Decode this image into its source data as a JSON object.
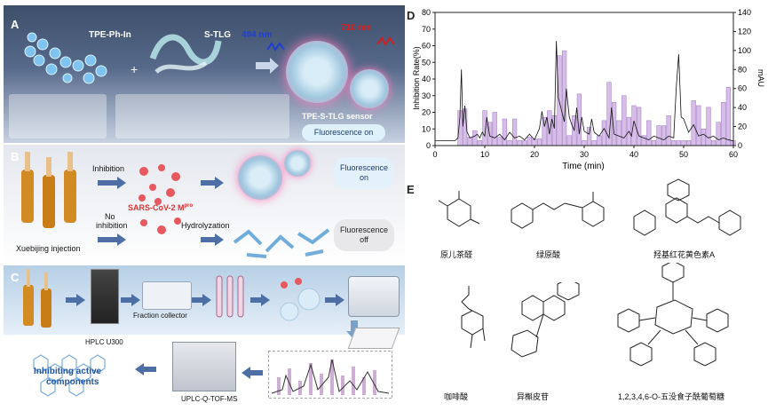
{
  "panelA": {
    "label": "A",
    "molecule1": "TPE-Ph-In",
    "plus": "+",
    "molecule2": "S-TLG",
    "wavelength_ex": "494 nm",
    "wavelength_em": "710 nm",
    "sensor": "TPE-S-TLG sensor",
    "state": "Fluorescence on"
  },
  "panelB": {
    "label": "B",
    "inhibition": "Inhibition",
    "target": "SARS-CoV-2 M",
    "target_sup": "pro",
    "no_inhibition_1": "No",
    "no_inhibition_2": "inhibition",
    "hydrolyzation": "Hydrolyzation",
    "sample": "Xuebijing injection",
    "on_1": "Fluorescence",
    "on_2": "on",
    "off_1": "Fluorescence",
    "off_2": "off"
  },
  "panelC": {
    "label": "C",
    "collector": "Fraction collector",
    "hplc": "HPLC U300",
    "msms": "UPLC-Q-TOF-MS",
    "result_1": "Inhibiting active",
    "result_2": "components"
  },
  "panelD": {
    "label": "D"
  },
  "panelE": {
    "label": "E",
    "compounds": [
      "原儿茶醛",
      "绿原酸",
      "羟基红花黄色素A",
      "咖啡酸",
      "异槲皮苷",
      "1,2,3,4,6-O-五没食子酰葡萄糖"
    ]
  },
  "chart_data": {
    "type": "bar",
    "xlabel": "Time (min)",
    "ylabel": "Inhibition Rate(%)",
    "ylabel_right": "mAU",
    "xlim": [
      0,
      60
    ],
    "ylim": [
      0,
      80
    ],
    "ylim_right": [
      0,
      140
    ],
    "xticks": [
      0,
      10,
      20,
      30,
      40,
      50,
      60
    ],
    "yticks": [
      0,
      10,
      20,
      30,
      40,
      50,
      60,
      70,
      80
    ],
    "yticks_right": [
      0,
      20,
      40,
      60,
      80,
      100,
      120,
      140
    ],
    "series": [
      {
        "type": "bar",
        "x": [
          5,
          6,
          7,
          8,
          9,
          10,
          11,
          12,
          13,
          14,
          15,
          16,
          17,
          18,
          19,
          20,
          21,
          22,
          23,
          24,
          25,
          26,
          27,
          28,
          29,
          30,
          31,
          32,
          33,
          34,
          35,
          36,
          37,
          38,
          39,
          40,
          41,
          42,
          43,
          44,
          45,
          46,
          47,
          48,
          49,
          50,
          51,
          52,
          53,
          54,
          55,
          56,
          57,
          58,
          59,
          60
        ],
        "values": [
          21,
          22,
          5,
          9,
          3,
          21,
          14,
          20,
          5,
          16,
          3,
          16,
          3,
          3,
          5,
          4,
          4,
          17,
          21,
          18,
          54,
          57,
          6,
          18,
          31,
          3,
          11,
          3,
          6,
          15,
          38,
          26,
          15,
          30,
          17,
          24,
          23,
          6,
          15,
          3,
          12,
          12,
          18,
          3,
          3,
          3,
          3,
          27,
          24,
          10,
          23,
          3,
          14,
          26,
          35,
          3
        ]
      },
      {
        "type": "line",
        "x": [
          0,
          4,
          4.6,
          5,
          5.3,
          5.6,
          6,
          6.4,
          7,
          8,
          8.5,
          9,
          9.5,
          10,
          10.4,
          11,
          12,
          13,
          14,
          15,
          16,
          17,
          18,
          19,
          20,
          21,
          21.5,
          22,
          22.5,
          23,
          23.5,
          24,
          24.4,
          24.8,
          25.3,
          26,
          26.4,
          27,
          27.5,
          28,
          28.5,
          29,
          29.5,
          30,
          31,
          31.5,
          32,
          33,
          34,
          35,
          35.5,
          36,
          37,
          38,
          39,
          39.5,
          40,
          41,
          42,
          43,
          44,
          45,
          46,
          47,
          48,
          48.5,
          49,
          49.5,
          50,
          51,
          52,
          53,
          54,
          55,
          56,
          57,
          58,
          59,
          60
        ],
        "values": [
          5,
          5,
          8,
          30,
          80,
          20,
          42,
          15,
          8,
          10,
          12,
          8,
          14,
          10,
          30,
          10,
          8,
          12,
          6,
          14,
          8,
          10,
          6,
          12,
          6,
          18,
          36,
          20,
          30,
          12,
          28,
          18,
          110,
          50,
          40,
          25,
          60,
          30,
          22,
          16,
          40,
          12,
          30,
          15,
          12,
          28,
          14,
          10,
          18,
          8,
          40,
          12,
          10,
          8,
          15,
          10,
          26,
          10,
          8,
          6,
          10,
          8,
          6,
          10,
          8,
          60,
          96,
          30,
          28,
          14,
          22,
          10,
          12,
          8,
          10,
          6,
          8,
          6,
          5
        ]
      }
    ]
  }
}
